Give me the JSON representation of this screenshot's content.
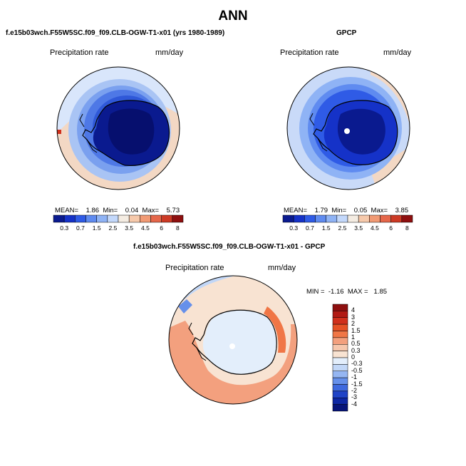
{
  "main_title": "ANN",
  "panel_model": {
    "title": "f.e15b03wch.F55W5SC.f09_f09.CLB-OGW-T1-x01 (yrs 1980-1989)",
    "variable": "Precipitation rate",
    "units": "mm/day",
    "mean_label": "MEAN=",
    "mean": "1.86",
    "min_label": "Min=",
    "min": "0.04",
    "max_label": "Max=",
    "max": "5.73"
  },
  "panel_obs": {
    "title": "GPCP",
    "variable": "Precipitation rate",
    "units": "mm/day",
    "mean_label": "MEAN=",
    "mean": "1.79",
    "min_label": "Min=",
    "min": "0.05",
    "max_label": "Max=",
    "max": "3.85"
  },
  "colorbar_abs": {
    "labels": [
      "0.3",
      "0.7",
      "1.5",
      "2.5",
      "3.5",
      "4.5",
      "6",
      "8"
    ],
    "colors": [
      "#0a1a8f",
      "#1532c8",
      "#2f5be6",
      "#5f8bf0",
      "#8fb3f5",
      "#c3d8fb",
      "#f4ece2",
      "#f6c9ab",
      "#f19a74",
      "#e5674a",
      "#cc3a25",
      "#8e0f0f"
    ]
  },
  "panel_diff": {
    "title": "f.e15b03wch.F55W5SC.f09_f09.CLB-OGW-T1-x01 - GPCP",
    "variable": "Precipitation rate",
    "units": "mm/day",
    "min_label": "MIN =",
    "min": "-1.16",
    "max_label": "MAX =",
    "max": "1.85"
  },
  "colorbar_diff": {
    "labels": [
      "4",
      "3",
      "2",
      "1.5",
      "1",
      "0.5",
      "0.3",
      "0",
      "-0.3",
      "-0.5",
      "-1",
      "-1.5",
      "-2",
      "-3",
      "-4"
    ],
    "colors": [
      "#8e0f0f",
      "#b11a14",
      "#d0301c",
      "#e55226",
      "#f07646",
      "#f3a07e",
      "#f6c7ad",
      "#f8e3d2",
      "#e3eefb",
      "#c2d7f7",
      "#95b6f2",
      "#6690ea",
      "#3e69de",
      "#1f43c6",
      "#0d27a3",
      "#061479"
    ]
  }
}
